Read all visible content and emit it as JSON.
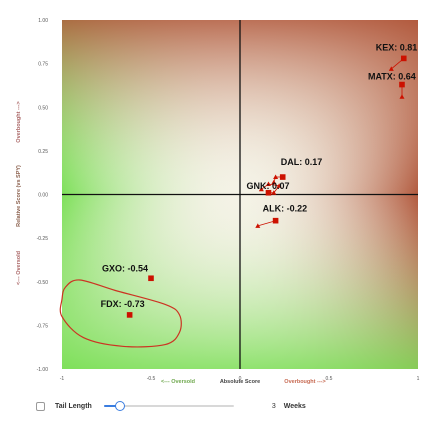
{
  "chart_data": {
    "type": "scatter",
    "x_axis": {
      "range": [
        -1,
        1
      ],
      "ticks": [
        -1,
        -0.5,
        0,
        0.5,
        1
      ],
      "tick_labels": [
        "-1",
        "-0.5",
        "0",
        "0.5",
        "1"
      ],
      "label_left": "<--- Oversold",
      "label_center": "Absolute Score",
      "label_right": "Overbought --->"
    },
    "y_axis": {
      "range": [
        -1,
        1
      ],
      "ticks": [
        1,
        0.75,
        0.5,
        0.25,
        0,
        -0.25,
        -0.5,
        -0.75,
        -1
      ],
      "tick_labels": [
        "1.00",
        "0.75",
        "0.50",
        "0.25",
        "0.00",
        "-0.25",
        "-0.50",
        "-0.75",
        "-1.00"
      ],
      "label_bottom": "<--- Oversold",
      "label_center": "Relative Score (vs SPY)",
      "label_top": "Overbought --->"
    },
    "background": {
      "overbought_color": "#b25a3e",
      "oversold_color": "#7ee05a",
      "neutral_color": "#f4f2e6"
    },
    "colors": {
      "point": "#cc1100",
      "trail": "#cc1100",
      "axis": "#111111"
    },
    "points": [
      {
        "label": "KEX: 0.81",
        "x": 0.92,
        "y": 0.78,
        "trail": [
          [
            0.85,
            0.72
          ],
          [
            0.92,
            0.78
          ]
        ]
      },
      {
        "label": "MATX: 0.64",
        "x": 0.91,
        "y": 0.63,
        "trail": [
          [
            0.91,
            0.56
          ],
          [
            0.91,
            0.63
          ]
        ]
      },
      {
        "label": "DAL: 0.17",
        "x": 0.24,
        "y": 0.1,
        "trail": [
          [
            0.19,
            0.07
          ],
          [
            0.2,
            0.1
          ],
          [
            0.24,
            0.1
          ]
        ]
      },
      {
        "label": "GNK: 0.07",
        "x": 0.16,
        "y": 0.01,
        "trail": [
          [
            0.12,
            0.03
          ],
          [
            0.16,
            0.06
          ],
          [
            0.22,
            0.05
          ],
          [
            0.19,
            0.01
          ],
          [
            0.16,
            0.01
          ]
        ]
      },
      {
        "label": "ALK: -0.22",
        "x": 0.2,
        "y": -0.15,
        "trail": [
          [
            0.1,
            -0.18
          ],
          [
            0.2,
            -0.15
          ]
        ]
      },
      {
        "label": "GXO: -0.54",
        "x": -0.5,
        "y": -0.48,
        "trail": [
          [
            -0.5,
            -0.48
          ]
        ]
      },
      {
        "label": "FDX: -0.73",
        "x": -0.62,
        "y": -0.69,
        "trail": [
          [
            -0.62,
            -0.69
          ]
        ]
      }
    ],
    "annotation_region": [
      [
        -0.98,
        -0.53
      ],
      [
        -0.9,
        -0.49
      ],
      [
        -0.7,
        -0.55
      ],
      [
        -0.42,
        -0.63
      ],
      [
        -0.34,
        -0.69
      ],
      [
        -0.34,
        -0.79
      ],
      [
        -0.42,
        -0.86
      ],
      [
        -0.66,
        -0.87
      ],
      [
        -0.88,
        -0.82
      ],
      [
        -1.0,
        -0.7
      ],
      [
        -1.0,
        -0.6
      ]
    ]
  },
  "controls": {
    "tail_length_label": "Tail Length",
    "tail_value": "3",
    "tail_unit": "Weeks",
    "tail_fraction": 0.12
  }
}
